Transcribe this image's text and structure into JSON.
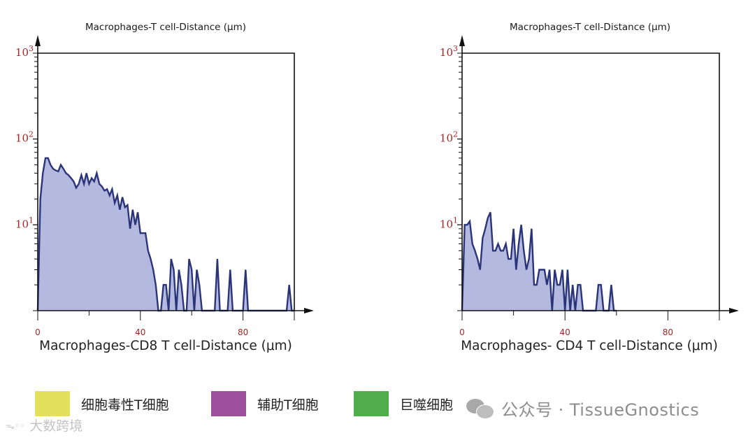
{
  "chart_data": [
    {
      "type": "area",
      "title": "Macrophages-T cell-Distance (μm)",
      "xlabel": "Macrophages-CD8 T cell-Distance (μm)",
      "ylabel": "",
      "yscale": "log",
      "xlim": [
        0,
        100
      ],
      "ylim": [
        1,
        1000
      ],
      "x_ticks": [
        "0",
        "40",
        "80"
      ],
      "y_ticks": [
        {
          "base": "10",
          "exp": "1"
        },
        {
          "base": "10",
          "exp": "2"
        },
        {
          "base": "10",
          "exp": "3"
        }
      ],
      "grid": false,
      "fill_color": "#b4b9df",
      "line_color": "#2b3478",
      "series": [
        {
          "x": [
            0,
            1,
            2,
            3,
            4,
            5,
            6,
            7,
            8,
            9,
            10,
            11,
            12,
            13,
            14,
            15,
            16,
            17,
            18,
            19,
            20,
            21,
            22,
            23,
            24,
            25,
            26,
            27,
            28,
            29,
            30,
            31,
            32,
            33,
            34,
            35,
            36,
            37,
            38,
            39,
            40,
            41,
            42,
            43,
            44,
            45,
            46,
            47,
            48,
            49,
            50,
            51,
            52,
            53,
            54,
            55,
            56,
            57,
            58,
            59,
            60,
            61,
            62,
            63,
            64,
            65,
            66,
            67,
            68,
            69,
            70,
            71,
            72,
            73,
            74,
            75,
            76,
            77,
            78,
            79,
            80,
            81,
            82,
            83,
            84,
            85,
            86,
            87,
            88,
            89,
            90,
            91,
            92,
            93,
            94,
            95,
            96,
            97,
            98,
            99,
            100
          ],
          "values": [
            1,
            20,
            40,
            60,
            60,
            50,
            45,
            43,
            42,
            50,
            45,
            40,
            38,
            35,
            32,
            27,
            30,
            38,
            30,
            40,
            30,
            35,
            32,
            40,
            30,
            28,
            25,
            26,
            22,
            26,
            18,
            22,
            15,
            21,
            16,
            17,
            9,
            15,
            10,
            14,
            8,
            8,
            8,
            5,
            4,
            3,
            2,
            1,
            1,
            2,
            2,
            1,
            4,
            3,
            1,
            3,
            2,
            1,
            1,
            4,
            3,
            1,
            3,
            2,
            1,
            1,
            1,
            1,
            1,
            1,
            4,
            1,
            1,
            1,
            1,
            3,
            1,
            1,
            1,
            1,
            1,
            3,
            1,
            1,
            1,
            1,
            1,
            1,
            1,
            1,
            1,
            1,
            1,
            1,
            1,
            1,
            1,
            1,
            2,
            1,
            1
          ]
        }
      ]
    },
    {
      "type": "area",
      "title": "Macrophages-T cell-Distance (μm)",
      "xlabel": "Macrophages- CD4 T cell-Distance (μm)",
      "ylabel": "",
      "yscale": "log",
      "xlim": [
        0,
        100
      ],
      "ylim": [
        1,
        1000
      ],
      "x_ticks": [
        "0",
        "40",
        "80"
      ],
      "y_ticks": [
        {
          "base": "10",
          "exp": "1"
        },
        {
          "base": "10",
          "exp": "2"
        },
        {
          "base": "10",
          "exp": "3"
        }
      ],
      "grid": false,
      "fill_color": "#b4b9df",
      "line_color": "#2b3478",
      "series": [
        {
          "x": [
            0,
            1,
            2,
            3,
            4,
            5,
            6,
            7,
            8,
            9,
            10,
            11,
            12,
            13,
            14,
            15,
            16,
            17,
            18,
            19,
            20,
            21,
            22,
            23,
            24,
            25,
            26,
            27,
            28,
            29,
            30,
            31,
            32,
            33,
            34,
            35,
            36,
            37,
            38,
            39,
            40,
            41,
            42,
            43,
            44,
            45,
            46,
            47,
            48,
            49,
            50,
            51,
            52,
            53,
            54,
            55,
            56,
            57,
            58,
            59,
            60
          ],
          "values": [
            1,
            10,
            10,
            11,
            6,
            5,
            4,
            3,
            7,
            9,
            12,
            14,
            5,
            5,
            6,
            5,
            5,
            6,
            4,
            4,
            9,
            3,
            6,
            10,
            5,
            3,
            4,
            9,
            2,
            2,
            3,
            3,
            3,
            2,
            3,
            1,
            3,
            2,
            2,
            3,
            1,
            3,
            1,
            2,
            1,
            2,
            2,
            1,
            1,
            1,
            1,
            1,
            1,
            2,
            2,
            1,
            1,
            1,
            2,
            1,
            1
          ]
        }
      ]
    }
  ],
  "legend": [
    {
      "label": "细胞毒性T细胞",
      "color": "#e3e05c"
    },
    {
      "label": "辅助T细胞",
      "color": "#9d4f9d"
    },
    {
      "label": "巨噬细胞",
      "color": "#4fad4c"
    }
  ],
  "watermarks": {
    "wechat": "公众号 · TissueGnostics",
    "corner": "大数跨境"
  }
}
